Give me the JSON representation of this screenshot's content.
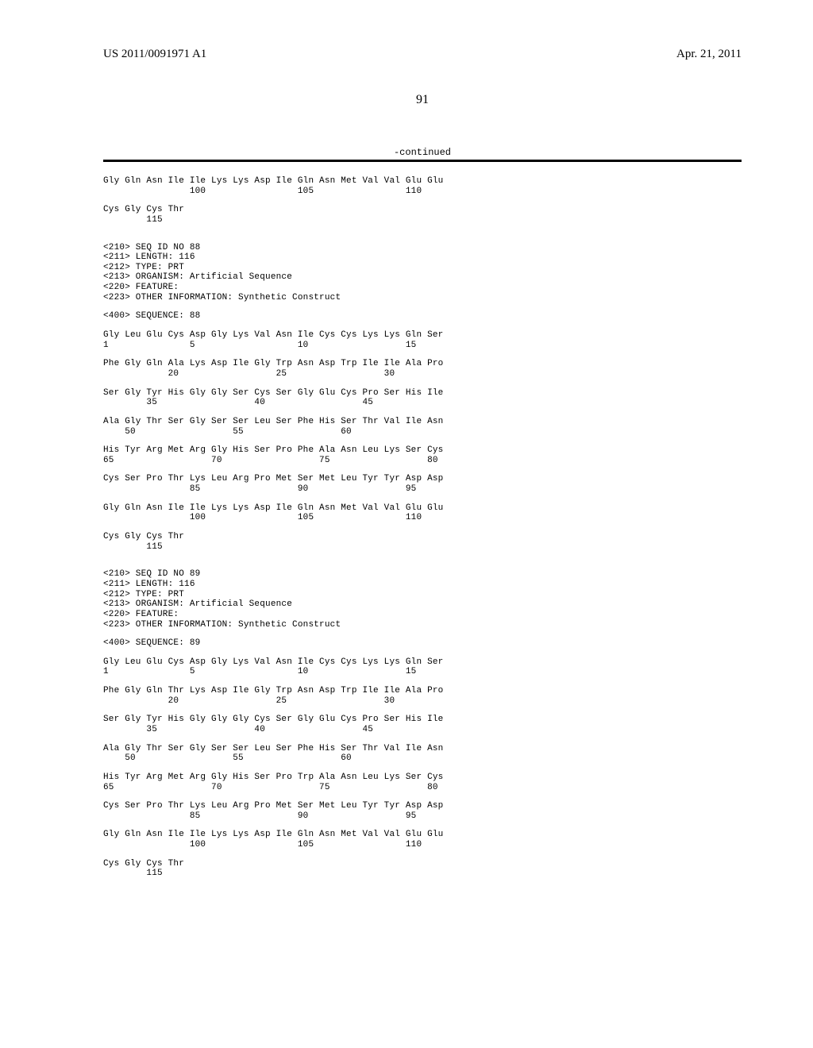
{
  "header": {
    "pub_number": "US 2011/0091971 A1",
    "pub_date": "Apr. 21, 2011",
    "page_number": "91",
    "continued_label": "-continued"
  },
  "seq87_tail": {
    "rows": [
      {
        "aa": "Gly Gln Asn Ile Ile Lys Lys Asp Ile Gln Asn Met Val Val Glu Glu",
        "nums": "                100                 105                 110"
      },
      {
        "aa": "Cys Gly Cys Thr",
        "nums": "        115"
      }
    ]
  },
  "seq88": {
    "meta": [
      "<210> SEQ ID NO 88",
      "<211> LENGTH: 116",
      "<212> TYPE: PRT",
      "<213> ORGANISM: Artificial Sequence",
      "<220> FEATURE:",
      "<223> OTHER INFORMATION: Synthetic Construct"
    ],
    "seq_label": "<400> SEQUENCE: 88",
    "rows": [
      {
        "aa": "Gly Leu Glu Cys Asp Gly Lys Val Asn Ile Cys Cys Lys Lys Gln Ser",
        "nums": "1               5                   10                  15"
      },
      {
        "aa": "Phe Gly Gln Ala Lys Asp Ile Gly Trp Asn Asp Trp Ile Ile Ala Pro",
        "nums": "            20                  25                  30"
      },
      {
        "aa": "Ser Gly Tyr His Gly Gly Ser Cys Ser Gly Glu Cys Pro Ser His Ile",
        "nums": "        35                  40                  45"
      },
      {
        "aa": "Ala Gly Thr Ser Gly Ser Ser Leu Ser Phe His Ser Thr Val Ile Asn",
        "nums": "    50                  55                  60"
      },
      {
        "aa": "His Tyr Arg Met Arg Gly His Ser Pro Phe Ala Asn Leu Lys Ser Cys",
        "nums": "65                  70                  75                  80"
      },
      {
        "aa": "Cys Ser Pro Thr Lys Leu Arg Pro Met Ser Met Leu Tyr Tyr Asp Asp",
        "nums": "                85                  90                  95"
      },
      {
        "aa": "Gly Gln Asn Ile Ile Lys Lys Asp Ile Gln Asn Met Val Val Glu Glu",
        "nums": "                100                 105                 110"
      },
      {
        "aa": "Cys Gly Cys Thr",
        "nums": "        115"
      }
    ]
  },
  "seq89": {
    "meta": [
      "<210> SEQ ID NO 89",
      "<211> LENGTH: 116",
      "<212> TYPE: PRT",
      "<213> ORGANISM: Artificial Sequence",
      "<220> FEATURE:",
      "<223> OTHER INFORMATION: Synthetic Construct"
    ],
    "seq_label": "<400> SEQUENCE: 89",
    "rows": [
      {
        "aa": "Gly Leu Glu Cys Asp Gly Lys Val Asn Ile Cys Cys Lys Lys Gln Ser",
        "nums": "1               5                   10                  15"
      },
      {
        "aa": "Phe Gly Gln Thr Lys Asp Ile Gly Trp Asn Asp Trp Ile Ile Ala Pro",
        "nums": "            20                  25                  30"
      },
      {
        "aa": "Ser Gly Tyr His Gly Gly Gly Cys Ser Gly Glu Cys Pro Ser His Ile",
        "nums": "        35                  40                  45"
      },
      {
        "aa": "Ala Gly Thr Ser Gly Ser Ser Leu Ser Phe His Ser Thr Val Ile Asn",
        "nums": "    50                  55                  60"
      },
      {
        "aa": "His Tyr Arg Met Arg Gly His Ser Pro Trp Ala Asn Leu Lys Ser Cys",
        "nums": "65                  70                  75                  80"
      },
      {
        "aa": "Cys Ser Pro Thr Lys Leu Arg Pro Met Ser Met Leu Tyr Tyr Asp Asp",
        "nums": "                85                  90                  95"
      },
      {
        "aa": "Gly Gln Asn Ile Ile Lys Lys Asp Ile Gln Asn Met Val Val Glu Glu",
        "nums": "                100                 105                 110"
      },
      {
        "aa": "Cys Gly Cys Thr",
        "nums": "        115"
      }
    ]
  }
}
